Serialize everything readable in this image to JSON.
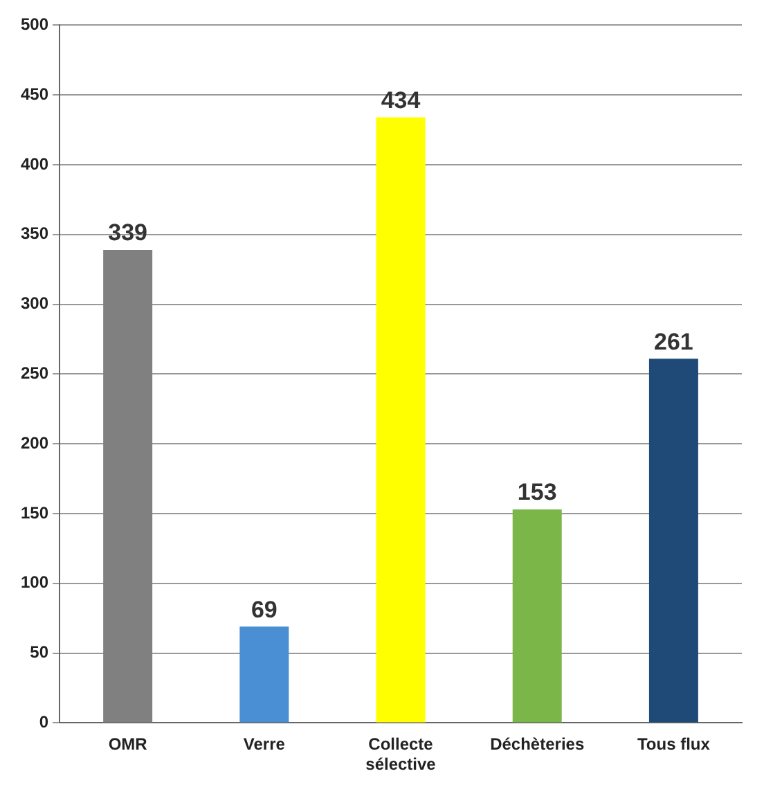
{
  "chart_data": {
    "type": "bar",
    "categories": [
      "OMR",
      "Verre",
      "Collecte sélective",
      "Déchèteries",
      "Tous flux"
    ],
    "values": [
      339,
      69,
      434,
      153,
      261
    ],
    "colors": [
      "#808080",
      "#4a8ed4",
      "#ffff00",
      "#7ab648",
      "#1f4a78"
    ],
    "ylim": [
      0,
      500
    ],
    "yticks": [
      0,
      50,
      100,
      150,
      200,
      250,
      300,
      350,
      400,
      450,
      500
    ],
    "grid": "y",
    "data_labels": true,
    "legend": false
  }
}
